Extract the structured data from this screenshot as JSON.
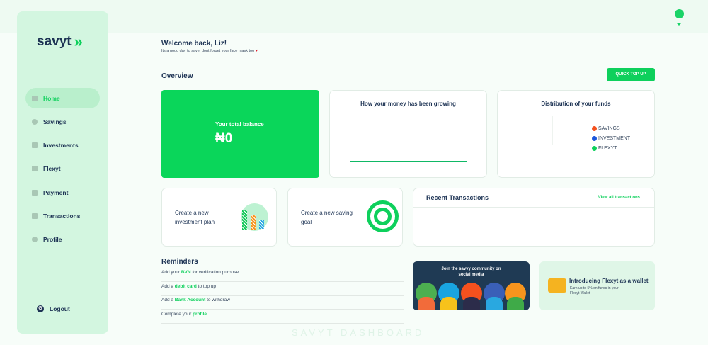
{
  "brand": {
    "name": "savyt"
  },
  "sidebar": {
    "items": [
      {
        "label": "Home",
        "icon": "grid-icon",
        "active": true
      },
      {
        "label": "Savings",
        "icon": "target-icon"
      },
      {
        "label": "Investments",
        "icon": "coins-icon"
      },
      {
        "label": "Flexyt",
        "icon": "wallet-icon"
      },
      {
        "label": "Payment",
        "icon": "bank-icon"
      },
      {
        "label": "Transactions",
        "icon": "receipt-icon"
      },
      {
        "label": "Profile",
        "icon": "user-icon"
      }
    ],
    "logout": "Logout"
  },
  "header": {
    "welcome": "Welcome back, Liz!",
    "subtitle": "Its a good day to save, dont forget your face mask too",
    "overview": "Overview",
    "quick_top_up": "QUICK TOP UP"
  },
  "balance": {
    "label": "Your total balance",
    "value": "₦0"
  },
  "growth": {
    "title": "How your money has been growing"
  },
  "distribution": {
    "title": "Distribution of your funds",
    "legend": [
      {
        "label": "SAVINGS",
        "color": "#f4511e"
      },
      {
        "label": "INVESTMENT",
        "color": "#1a56db"
      },
      {
        "label": "FLEXYT",
        "color": "#0ed05c"
      }
    ]
  },
  "actions": {
    "investment": "Create a new investment plan",
    "saving": "Create a new saving goal"
  },
  "transactions": {
    "title": "Recent Transactions",
    "view_all": "View all transactions"
  },
  "reminders": {
    "title": "Reminders",
    "items": [
      {
        "pre": "Add your ",
        "link": "BVN",
        "post": " for verification purpose"
      },
      {
        "pre": "Add a ",
        "link": "debit card",
        "post": " to top up"
      },
      {
        "pre": "Add a ",
        "link": "Bank Account",
        "post": " to withdraw"
      },
      {
        "pre": "Complete your ",
        "link": "profile",
        "post": ""
      }
    ]
  },
  "community": {
    "text": "Join the savvy community on social media"
  },
  "flexyt_promo": {
    "title": "Introducing Flexyt as a wallet",
    "text": "Earn up to 5% on funds in your Flexyt Wallet"
  },
  "watermark": "SAVYT DASHBOARD"
}
